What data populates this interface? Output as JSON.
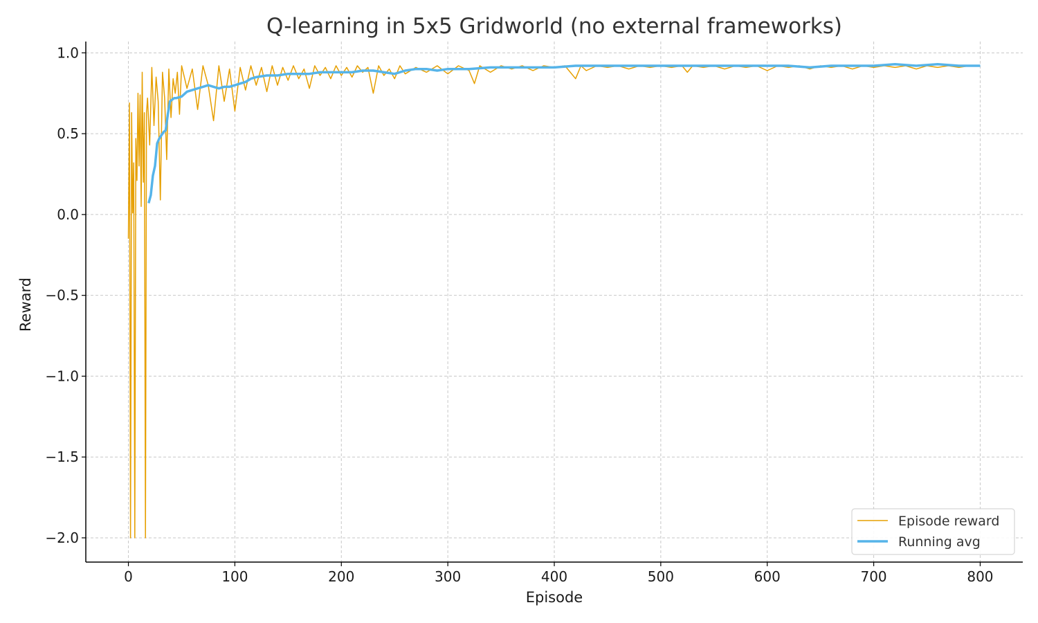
{
  "chart_data": {
    "type": "line",
    "title": "Q-learning in 5x5 Gridworld (no external frameworks)",
    "xlabel": "Episode",
    "ylabel": "Reward",
    "xlim": [
      -40,
      840
    ],
    "ylim": [
      -2.15,
      1.07
    ],
    "xticks": [
      0,
      100,
      200,
      300,
      400,
      500,
      600,
      700,
      800
    ],
    "yticks": [
      1.0,
      0.5,
      0.0,
      -0.5,
      -1.0,
      -1.5,
      -2.0
    ],
    "xtick_labels": [
      "0",
      "100",
      "200",
      "300",
      "400",
      "500",
      "600",
      "700",
      "800"
    ],
    "ytick_labels": [
      "1.0",
      "0.5",
      "0.0",
      "−0.5",
      "−1.0",
      "−1.5",
      "−2.0"
    ],
    "grid": true,
    "legend_position": "bottom-right",
    "series": [
      {
        "name": "Episode reward",
        "color": "#E69F00",
        "x": [
          0,
          1,
          2,
          3,
          4,
          5,
          6,
          7,
          8,
          9,
          10,
          11,
          12,
          13,
          14,
          15,
          16,
          17,
          18,
          19,
          20,
          22,
          24,
          26,
          28,
          30,
          32,
          34,
          36,
          38,
          40,
          42,
          44,
          46,
          48,
          50,
          55,
          60,
          65,
          70,
          75,
          80,
          85,
          90,
          95,
          100,
          105,
          110,
          115,
          120,
          125,
          130,
          135,
          140,
          145,
          150,
          155,
          160,
          165,
          170,
          175,
          180,
          185,
          190,
          195,
          200,
          205,
          210,
          215,
          220,
          225,
          230,
          235,
          240,
          245,
          250,
          255,
          260,
          270,
          280,
          290,
          300,
          310,
          320,
          325,
          330,
          340,
          350,
          360,
          370,
          380,
          390,
          400,
          410,
          420,
          425,
          430,
          440,
          450,
          460,
          470,
          480,
          490,
          500,
          510,
          520,
          525,
          530,
          540,
          550,
          560,
          570,
          580,
          590,
          600,
          610,
          620,
          630,
          640,
          650,
          660,
          670,
          680,
          690,
          700,
          710,
          720,
          730,
          740,
          750,
          760,
          770,
          780,
          790,
          800
        ],
        "values": [
          -0.15,
          0.69,
          -2.0,
          0.63,
          0.01,
          0.32,
          -2.0,
          0.47,
          0.21,
          0.75,
          0.3,
          0.74,
          0.05,
          0.88,
          0.2,
          0.63,
          -2.0,
          0.63,
          0.72,
          0.57,
          0.43,
          0.91,
          0.55,
          0.85,
          0.7,
          0.09,
          0.88,
          0.72,
          0.34,
          0.9,
          0.6,
          0.84,
          0.75,
          0.88,
          0.62,
          0.92,
          0.78,
          0.9,
          0.65,
          0.92,
          0.8,
          0.58,
          0.92,
          0.7,
          0.9,
          0.64,
          0.91,
          0.77,
          0.92,
          0.8,
          0.91,
          0.76,
          0.92,
          0.8,
          0.91,
          0.83,
          0.92,
          0.84,
          0.9,
          0.78,
          0.92,
          0.86,
          0.91,
          0.84,
          0.92,
          0.86,
          0.91,
          0.85,
          0.92,
          0.88,
          0.91,
          0.75,
          0.92,
          0.86,
          0.9,
          0.84,
          0.92,
          0.87,
          0.91,
          0.88,
          0.92,
          0.87,
          0.92,
          0.89,
          0.81,
          0.92,
          0.88,
          0.92,
          0.9,
          0.92,
          0.89,
          0.92,
          0.91,
          0.92,
          0.84,
          0.92,
          0.89,
          0.92,
          0.91,
          0.92,
          0.9,
          0.92,
          0.91,
          0.92,
          0.91,
          0.92,
          0.88,
          0.92,
          0.91,
          0.92,
          0.9,
          0.92,
          0.91,
          0.92,
          0.89,
          0.92,
          0.91,
          0.92,
          0.9,
          0.92,
          0.91,
          0.92,
          0.9,
          0.92,
          0.91,
          0.92,
          0.91,
          0.92,
          0.9,
          0.92,
          0.91,
          0.92,
          0.91,
          0.92,
          0.92
        ]
      },
      {
        "name": "Running avg",
        "color": "#56B4E9",
        "x": [
          19,
          21,
          23,
          25,
          27,
          29,
          31,
          33,
          35,
          37,
          39,
          41,
          43,
          45,
          50,
          55,
          60,
          65,
          70,
          75,
          80,
          85,
          90,
          95,
          100,
          105,
          110,
          115,
          120,
          130,
          140,
          150,
          160,
          170,
          180,
          190,
          200,
          210,
          220,
          230,
          240,
          250,
          260,
          270,
          280,
          290,
          300,
          320,
          340,
          360,
          380,
          400,
          420,
          440,
          460,
          480,
          500,
          520,
          540,
          560,
          580,
          600,
          620,
          640,
          660,
          680,
          700,
          720,
          740,
          760,
          780,
          800
        ],
        "values": [
          0.07,
          0.12,
          0.24,
          0.3,
          0.44,
          0.47,
          0.49,
          0.51,
          0.52,
          0.62,
          0.7,
          0.71,
          0.72,
          0.72,
          0.73,
          0.76,
          0.77,
          0.78,
          0.79,
          0.8,
          0.79,
          0.78,
          0.79,
          0.79,
          0.8,
          0.81,
          0.82,
          0.84,
          0.85,
          0.86,
          0.86,
          0.87,
          0.87,
          0.87,
          0.88,
          0.88,
          0.88,
          0.88,
          0.89,
          0.89,
          0.88,
          0.87,
          0.89,
          0.9,
          0.9,
          0.89,
          0.9,
          0.9,
          0.91,
          0.91,
          0.91,
          0.91,
          0.92,
          0.92,
          0.92,
          0.92,
          0.92,
          0.92,
          0.92,
          0.92,
          0.92,
          0.92,
          0.92,
          0.91,
          0.92,
          0.92,
          0.92,
          0.93,
          0.92,
          0.93,
          0.92,
          0.92
        ]
      }
    ]
  }
}
